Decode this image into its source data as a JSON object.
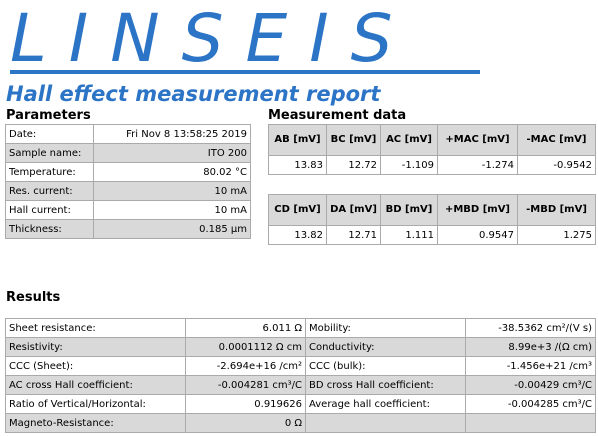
{
  "header": {
    "logo": "LINSEIS",
    "title": "Hall effect measurement report"
  },
  "parameters": {
    "heading": "Parameters",
    "rows": [
      [
        "Date:",
        "Fri Nov 8 13:58:25 2019"
      ],
      [
        "Sample name:",
        "ITO 200"
      ],
      [
        "Temperature:",
        "80.02 °C"
      ],
      [
        "Res. current:",
        "10 mA"
      ],
      [
        "Hall current:",
        "10 mA"
      ],
      [
        "Thickness:",
        "0.185 µm"
      ]
    ]
  },
  "measurement": {
    "heading": "Measurement data",
    "tables": [
      {
        "headers": [
          "AB [mV]",
          "BC [mV]",
          "AC [mV]",
          "+MAC [mV]",
          "-MAC [mV]"
        ],
        "values": [
          "13.83",
          "12.72",
          "-1.109",
          "-1.274",
          "-0.9542"
        ]
      },
      {
        "headers": [
          "CD [mV]",
          "DA [mV]",
          "BD [mV]",
          "+MBD [mV]",
          "-MBD [mV]"
        ],
        "values": [
          "13.82",
          "12.71",
          "1.111",
          "0.9547",
          "1.275"
        ]
      }
    ]
  },
  "results": {
    "heading": "Results",
    "rows": [
      [
        "Sheet resistance:",
        "6.011 Ω",
        "Mobility:",
        "-38.5362 cm²/(V s)"
      ],
      [
        "Resistivity:",
        "0.0001112 Ω cm",
        "Conductivity:",
        "8.99e+3 /(Ω cm)"
      ],
      [
        "CCC (Sheet):",
        "-2.694e+16 /cm²",
        "CCC (bulk):",
        "-1.456e+21 /cm³"
      ],
      [
        "AC cross Hall coefficient:",
        "-0.004281 cm³/C",
        "BD cross Hall coefficient:",
        "-0.00429 cm³/C"
      ],
      [
        "Ratio of Vertical/Horizontal:",
        "0.919626",
        "Average hall coefficient:",
        "-0.004285 cm³/C"
      ],
      [
        "Magneto-Resistance:",
        "0 Ω"
      ]
    ]
  }
}
